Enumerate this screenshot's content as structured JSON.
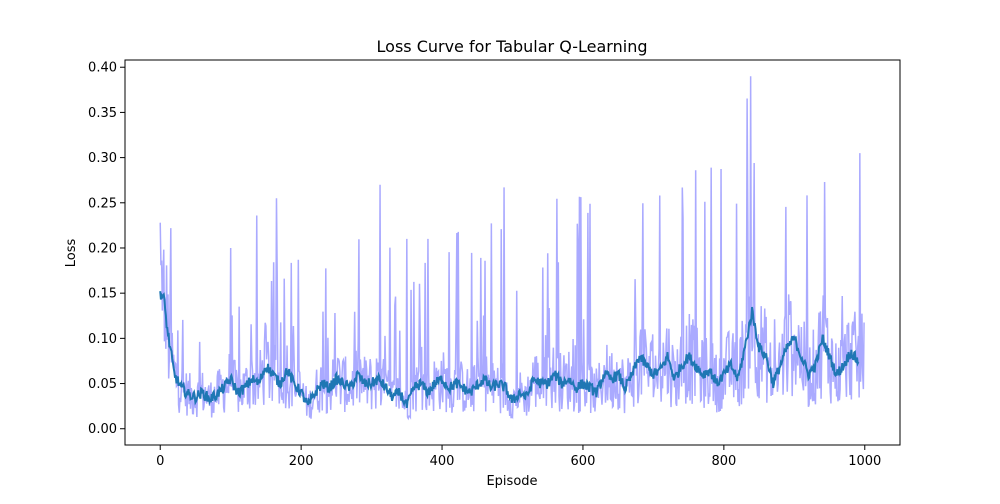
{
  "chart_data": {
    "type": "line",
    "title": "Loss Curve for Tabular Q-Learning",
    "xlabel": "Episode",
    "ylabel": "Loss",
    "xlim": [
      -50,
      1050
    ],
    "ylim": [
      -0.018,
      0.408
    ],
    "x_ticks": [
      0,
      200,
      400,
      600,
      800,
      1000
    ],
    "x_tick_labels": [
      "0",
      "200",
      "400",
      "600",
      "800",
      "1000"
    ],
    "y_ticks": [
      0.0,
      0.05,
      0.1,
      0.15,
      0.2,
      0.25,
      0.3,
      0.35,
      0.4
    ],
    "y_tick_labels": [
      "0.00",
      "0.05",
      "0.10",
      "0.15",
      "0.20",
      "0.25",
      "0.30",
      "0.35",
      "0.40"
    ],
    "grid": false,
    "legend": null,
    "series": [
      {
        "role": "raw",
        "color": "#aaaaff",
        "episodes": 1000,
        "approximate_range": [
          0.0,
          0.39
        ],
        "notable_spikes": [
          {
            "x": 0,
            "y": 0.228
          },
          {
            "x": 15,
            "y": 0.222
          },
          {
            "x": 100,
            "y": 0.2
          },
          {
            "x": 137,
            "y": 0.236
          },
          {
            "x": 165,
            "y": 0.255
          },
          {
            "x": 196,
            "y": 0.187
          },
          {
            "x": 312,
            "y": 0.27
          },
          {
            "x": 350,
            "y": 0.21
          },
          {
            "x": 380,
            "y": 0.21
          },
          {
            "x": 488,
            "y": 0.267
          },
          {
            "x": 610,
            "y": 0.249
          },
          {
            "x": 760,
            "y": 0.286
          },
          {
            "x": 838,
            "y": 0.39
          },
          {
            "x": 843,
            "y": 0.294
          },
          {
            "x": 943,
            "y": 0.273
          },
          {
            "x": 993,
            "y": 0.305
          }
        ]
      },
      {
        "role": "moving-average",
        "color": "#1f77b4",
        "points": [
          [
            0,
            0.15
          ],
          [
            5,
            0.145
          ],
          [
            10,
            0.11
          ],
          [
            20,
            0.06
          ],
          [
            30,
            0.045
          ],
          [
            40,
            0.038
          ],
          [
            50,
            0.035
          ],
          [
            60,
            0.04
          ],
          [
            70,
            0.033
          ],
          [
            80,
            0.038
          ],
          [
            90,
            0.045
          ],
          [
            100,
            0.055
          ],
          [
            110,
            0.04
          ],
          [
            120,
            0.045
          ],
          [
            130,
            0.055
          ],
          [
            140,
            0.05
          ],
          [
            150,
            0.07
          ],
          [
            160,
            0.06
          ],
          [
            170,
            0.05
          ],
          [
            180,
            0.065
          ],
          [
            190,
            0.05
          ],
          [
            200,
            0.04
          ],
          [
            210,
            0.025
          ],
          [
            220,
            0.04
          ],
          [
            230,
            0.05
          ],
          [
            240,
            0.045
          ],
          [
            250,
            0.055
          ],
          [
            260,
            0.05
          ],
          [
            270,
            0.045
          ],
          [
            280,
            0.06
          ],
          [
            290,
            0.05
          ],
          [
            300,
            0.05
          ],
          [
            310,
            0.055
          ],
          [
            320,
            0.045
          ],
          [
            330,
            0.035
          ],
          [
            340,
            0.04
          ],
          [
            350,
            0.025
          ],
          [
            360,
            0.045
          ],
          [
            370,
            0.05
          ],
          [
            380,
            0.04
          ],
          [
            390,
            0.05
          ],
          [
            400,
            0.055
          ],
          [
            410,
            0.045
          ],
          [
            420,
            0.05
          ],
          [
            430,
            0.045
          ],
          [
            440,
            0.04
          ],
          [
            450,
            0.048
          ],
          [
            460,
            0.055
          ],
          [
            470,
            0.045
          ],
          [
            480,
            0.05
          ],
          [
            490,
            0.045
          ],
          [
            500,
            0.03
          ],
          [
            510,
            0.04
          ],
          [
            520,
            0.035
          ],
          [
            530,
            0.055
          ],
          [
            540,
            0.05
          ],
          [
            550,
            0.05
          ],
          [
            560,
            0.06
          ],
          [
            570,
            0.05
          ],
          [
            580,
            0.055
          ],
          [
            590,
            0.045
          ],
          [
            600,
            0.05
          ],
          [
            610,
            0.045
          ],
          [
            620,
            0.04
          ],
          [
            630,
            0.06
          ],
          [
            640,
            0.055
          ],
          [
            650,
            0.06
          ],
          [
            660,
            0.045
          ],
          [
            670,
            0.06
          ],
          [
            680,
            0.08
          ],
          [
            690,
            0.07
          ],
          [
            700,
            0.06
          ],
          [
            710,
            0.065
          ],
          [
            720,
            0.08
          ],
          [
            730,
            0.055
          ],
          [
            740,
            0.07
          ],
          [
            750,
            0.08
          ],
          [
            760,
            0.07
          ],
          [
            770,
            0.06
          ],
          [
            780,
            0.065
          ],
          [
            790,
            0.05
          ],
          [
            800,
            0.06
          ],
          [
            810,
            0.07
          ],
          [
            820,
            0.055
          ],
          [
            830,
            0.09
          ],
          [
            840,
            0.13
          ],
          [
            845,
            0.11
          ],
          [
            850,
            0.09
          ],
          [
            860,
            0.08
          ],
          [
            870,
            0.05
          ],
          [
            880,
            0.07
          ],
          [
            890,
            0.09
          ],
          [
            900,
            0.1
          ],
          [
            910,
            0.08
          ],
          [
            920,
            0.06
          ],
          [
            930,
            0.07
          ],
          [
            940,
            0.1
          ],
          [
            950,
            0.08
          ],
          [
            960,
            0.06
          ],
          [
            970,
            0.07
          ],
          [
            980,
            0.085
          ],
          [
            990,
            0.075
          ]
        ]
      }
    ]
  }
}
